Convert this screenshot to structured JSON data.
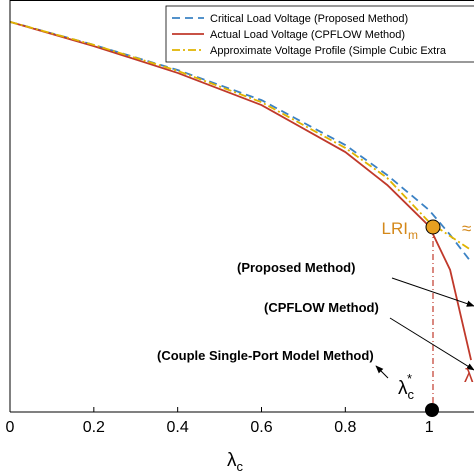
{
  "chart_data": {
    "type": "line",
    "xlabel": {
      "text": "λ",
      "sub": "c"
    },
    "x": [
      0,
      0.2,
      0.4,
      0.6,
      0.8,
      0.9,
      1.0,
      1.05,
      1.1
    ],
    "xlim": [
      0,
      1.107
    ],
    "xticks": [
      0,
      0.2,
      0.4,
      0.6,
      0.8,
      1
    ],
    "ylim": [
      0,
      1
    ],
    "series": [
      {
        "name": "Critical Load Voltage (Proposed Method)",
        "color": "#3b82c4",
        "dash": "dashed",
        "values": [
          0.947,
          0.891,
          0.83,
          0.757,
          0.648,
          0.575,
          0.49,
          0.43,
          0.364
        ]
      },
      {
        "name": "Actual Load Voltage (CPFLOW Method)",
        "color": "#c0392b",
        "dash": "solid",
        "values": [
          0.947,
          0.888,
          0.823,
          0.745,
          0.631,
          0.551,
          0.451,
          0.345,
          0.126
        ]
      },
      {
        "name": "Approximate Voltage Profile (Simple Cubic Extra",
        "color": "#e0b400",
        "dash": "dashdot",
        "values": [
          0.947,
          0.891,
          0.828,
          0.752,
          0.641,
          0.568,
          0.461,
          0.427,
          0.393
        ]
      }
    ],
    "annotations": {
      "lri": {
        "text": "LRI",
        "sub": "m",
        "tail": "≈"
      },
      "proposed": "(Proposed Method)",
      "cpflow": "(CPFLOW Method)",
      "couple": "(Couple Single-Port Model Method)",
      "lambda_star": {
        "text": "λ",
        "sub": "c",
        "sup": "*"
      },
      "lambda_red": "λ"
    }
  }
}
